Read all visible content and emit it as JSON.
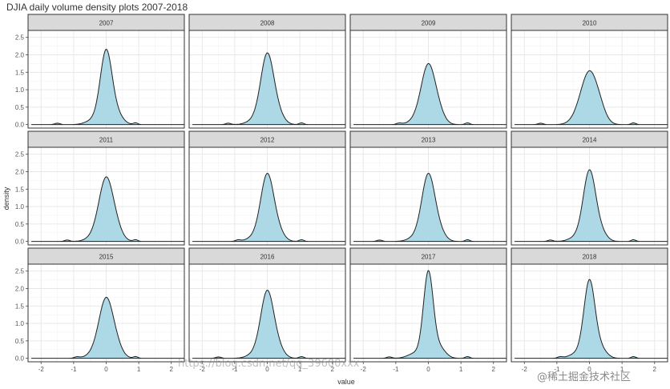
{
  "chart_data": {
    "type": "area",
    "title": "DJIA daily volume density plots 2007-2018",
    "xlabel": "value",
    "ylabel": "density",
    "xlim": [
      -2.4,
      2.4
    ],
    "ylim": [
      -0.1,
      2.7
    ],
    "xticks": [
      -2,
      -1,
      0,
      1,
      2
    ],
    "yticks": [
      0.0,
      0.5,
      1.0,
      1.5,
      2.0,
      2.5
    ],
    "ytick_labels": [
      "0.0",
      "0.5",
      "1.0",
      "1.5",
      "2.0",
      "2.5"
    ],
    "x_range": [
      -2.3,
      2.4
    ],
    "grid": true,
    "fill_color": "#add8e6",
    "line_color": "#222222",
    "panels": [
      {
        "label": "2007",
        "peak": 2.1,
        "width": 0.18,
        "center": 0.0
      },
      {
        "label": "2008",
        "peak": 2.0,
        "width": 0.2,
        "center": 0.0
      },
      {
        "label": "2009",
        "peak": 1.7,
        "width": 0.22,
        "center": 0.0
      },
      {
        "label": "2010",
        "peak": 1.5,
        "width": 0.26,
        "center": 0.0
      },
      {
        "label": "2011",
        "peak": 1.8,
        "width": 0.22,
        "center": 0.0
      },
      {
        "label": "2012",
        "peak": 1.9,
        "width": 0.2,
        "center": 0.0
      },
      {
        "label": "2013",
        "peak": 1.9,
        "width": 0.2,
        "center": 0.0
      },
      {
        "label": "2014",
        "peak": 2.0,
        "width": 0.19,
        "center": 0.0
      },
      {
        "label": "2015",
        "peak": 1.7,
        "width": 0.22,
        "center": 0.0
      },
      {
        "label": "2016",
        "peak": 1.9,
        "width": 0.2,
        "center": 0.0
      },
      {
        "label": "2017",
        "peak": 2.45,
        "width": 0.15,
        "center": 0.0
      },
      {
        "label": "2018",
        "peak": 2.2,
        "width": 0.17,
        "center": 0.0
      }
    ]
  },
  "watermark": {
    "url_text": "https://blog.csdn.net/qq_39600xxx",
    "brand_text": "@稀土掘金技术社区"
  }
}
